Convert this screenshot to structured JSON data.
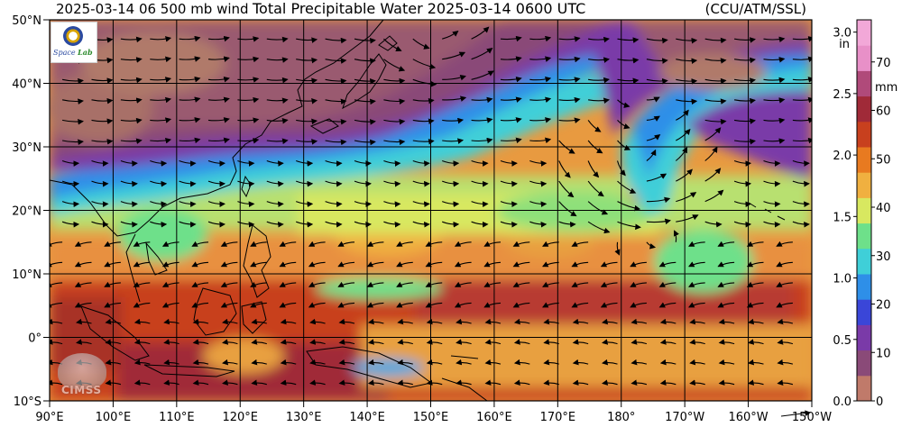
{
  "header": {
    "left": "2025-03-14 06 500 mb wind",
    "center": "Total Precipitable Water  2025-03-14 0600 UTC",
    "right": "(CCU/ATM/SSL)"
  },
  "map": {
    "lon_min": 90,
    "lon_max": 210,
    "lat_min": -10,
    "lat_max": 50,
    "lon_labels": [
      "90°E",
      "100°E",
      "110°E",
      "120°E",
      "130°E",
      "140°E",
      "150°E",
      "160°E",
      "170°E",
      "180°",
      "170°W",
      "160°W",
      "150°W"
    ],
    "lat_labels": [
      "50°N",
      "40°N",
      "30°N",
      "20°N",
      "10°N",
      "0°",
      "10°S"
    ]
  },
  "colorbar": {
    "in_ticks": [
      "3.0",
      "2.5",
      "2.0",
      "1.5",
      "1.0",
      "0.5",
      "0.0"
    ],
    "in_unit": "in",
    "mm_ticks": [
      "70",
      "60",
      "50",
      "40",
      "30",
      "20",
      "10",
      "0"
    ],
    "mm_unit": "mm",
    "colors": [
      "#c07a6a",
      "#8a4a78",
      "#7a3aa8",
      "#3a46d8",
      "#2e8fe8",
      "#3fcfd8",
      "#6ee08a",
      "#d8e860",
      "#f0b040",
      "#e87a20",
      "#c8401e",
      "#a02a38",
      "#b04a7a",
      "#e890c8",
      "#f2a8d8"
    ]
  },
  "logos": {
    "top_left": {
      "text_a": "Space",
      "text_b": "Lab"
    },
    "bottom_left": {
      "text": "CIMSS"
    }
  }
}
